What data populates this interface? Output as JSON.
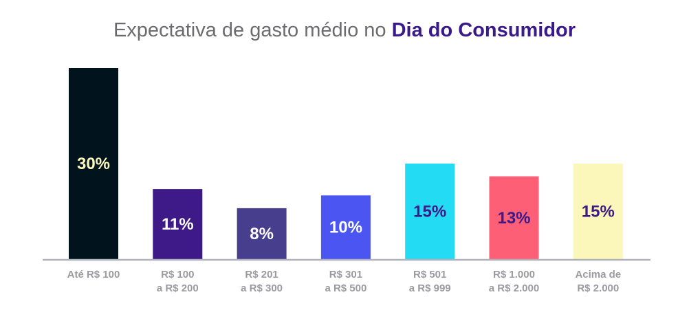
{
  "chart_data": {
    "type": "bar",
    "title_prefix": "Expectativa de gasto médio no ",
    "title_emphasis": "Dia do Consumidor",
    "xlabel": "",
    "ylabel": "",
    "unit": "%",
    "ylim": [
      0,
      30
    ],
    "grid": false,
    "categories": [
      [
        "Até R$ 100"
      ],
      [
        "R$ 100",
        "a R$ 200"
      ],
      [
        "R$ 201",
        "a R$ 300"
      ],
      [
        "R$ 301",
        "a R$ 500"
      ],
      [
        "R$ 501",
        "a R$ 999"
      ],
      [
        "R$ 1.000",
        "a R$ 2.000"
      ],
      [
        "Acima de",
        "R$ 2.000"
      ]
    ],
    "values": [
      30,
      11,
      8,
      10,
      15,
      13,
      15
    ],
    "value_labels": [
      "30%",
      "11%",
      "8%",
      "10%",
      "15%",
      "13%",
      "15%"
    ],
    "bar_colors": [
      "#01131c",
      "#3d1a87",
      "#473f8e",
      "#4a55f2",
      "#24dbf4",
      "#fd5f76",
      "#fbf6b9"
    ],
    "label_colors": [
      "#fbf6b9",
      "#ffffff",
      "#ffffff",
      "#ffffff",
      "#3d1a87",
      "#3d1a87",
      "#3d1a87"
    ],
    "axis_color": "#b0b2bb"
  }
}
